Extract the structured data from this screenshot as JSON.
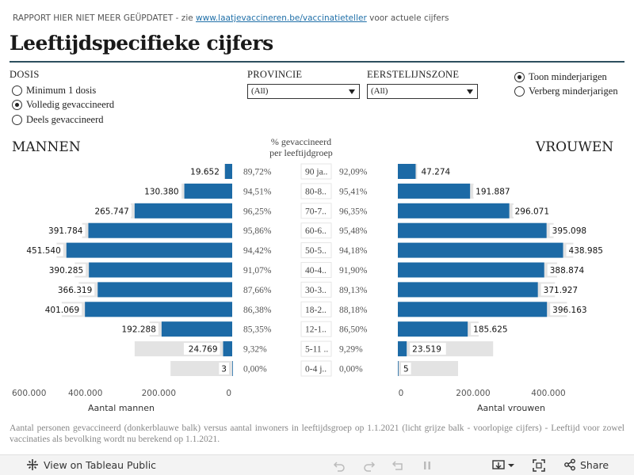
{
  "header": {
    "note_prefix": "RAPPORT HIER NIET MEER GEÜPDATET - zie ",
    "note_link": "www.laatjevaccineren.be/vaccinatieteller",
    "note_suffix": " voor actuele cijfers",
    "title": "Leeftijdspecifieke  cijfers"
  },
  "filters": {
    "dosis": {
      "label": "DOSIS",
      "options": [
        "Minimum  1 dosis",
        "Volledig  gevaccineerd",
        "Deels  gevaccineerd"
      ],
      "selected_index": 1
    },
    "provincie": {
      "label": "PROVINCIE",
      "value": "(All)"
    },
    "eerstelijnszone": {
      "label": "EERSTELIJNSZONE",
      "value": "(All)"
    },
    "minderjarigen": {
      "options": [
        "Toon  minderjarigen",
        "Verberg  minderjarigen"
      ],
      "selected_index": 0
    }
  },
  "chart_data": {
    "type": "bar",
    "left_title": "MANNEN",
    "right_title": "VROUWEN",
    "center_title_line1": "%  gevaccineerd",
    "center_title_line2": "per  leeftijdgroep",
    "categories": [
      "90 ja..",
      "80-8..",
      "70-7..",
      "60-6..",
      "50-5..",
      "40-4..",
      "30-3..",
      "18-2..",
      "12-1..",
      "5-11 ..",
      "0-4 j.."
    ],
    "series": [
      {
        "name": "MANNEN",
        "vaccinated": [
          19652,
          130380,
          265747,
          391784,
          451540,
          390285,
          366319,
          401069,
          192288,
          24769,
          3
        ],
        "vaccinated_labels": [
          "19.652",
          "130.380",
          "265.747",
          "391.784",
          "451.540",
          "390.285",
          "366.319",
          "401.069",
          "192.288",
          "24.769",
          "3"
        ],
        "population": [
          21900,
          137900,
          276100,
          408700,
          478200,
          428700,
          417900,
          464300,
          225300,
          265700,
          168000
        ],
        "pct_labels": [
          "89,72%",
          "94,51%",
          "96,25%",
          "95,86%",
          "94,42%",
          "91,07%",
          "87,66%",
          "86,38%",
          "85,35%",
          "9,32%",
          "0,00%"
        ]
      },
      {
        "name": "VROUWEN",
        "vaccinated": [
          47274,
          191887,
          296071,
          395098,
          438985,
          388874,
          371927,
          396163,
          185625,
          23519,
          5
        ],
        "vaccinated_labels": [
          "47.274",
          "191.887",
          "296.071",
          "395.098",
          "438.985",
          "388.874",
          "371.927",
          "396.163",
          "185.625",
          "23.519",
          "5"
        ],
        "population": [
          51300,
          201100,
          307300,
          413800,
          466100,
          423100,
          417400,
          449300,
          214600,
          253100,
          160000
        ],
        "pct_labels": [
          "92,09%",
          "95,41%",
          "96,35%",
          "95,48%",
          "94,18%",
          "91,90%",
          "89,13%",
          "88,18%",
          "86,50%",
          "9,29%",
          "0,00%"
        ]
      }
    ],
    "left_axis": {
      "label": "Aantal mannen",
      "ticks": [
        600000,
        400000,
        200000,
        0
      ],
      "tick_labels": [
        "600.000",
        "400.000",
        "200.000",
        "0"
      ],
      "xlim": [
        0,
        600000
      ]
    },
    "right_axis": {
      "label": "Aantal vrouwen",
      "ticks": [
        0,
        200000,
        400000
      ],
      "tick_labels": [
        "0",
        "200.000",
        "400.000"
      ],
      "xlim": [
        0,
        470000
      ]
    },
    "colors": {
      "vaccinated": "#1c6aa6",
      "population": "#e3e3e3",
      "label_bg": "#ffffff"
    },
    "legend": "none",
    "grid": false
  },
  "footnote": "Aantal personen gevaccineerd (donkerblauwe balk) versus aantal inwoners in leeftijdsgroep op 1.1.2021 (licht grijze balk - voorlopige cijfers) - Leeftijd voor zowel vaccinaties als bevolking wordt nu berekend op 1.1.2021.",
  "toolbar": {
    "view_label": "View on Tableau Public",
    "share_label": "Share",
    "icons": [
      "tableau-logo-icon",
      "undo-icon",
      "redo-icon",
      "revert-icon",
      "pause-icon",
      "download-icon",
      "fullscreen-icon",
      "share-icon"
    ]
  }
}
